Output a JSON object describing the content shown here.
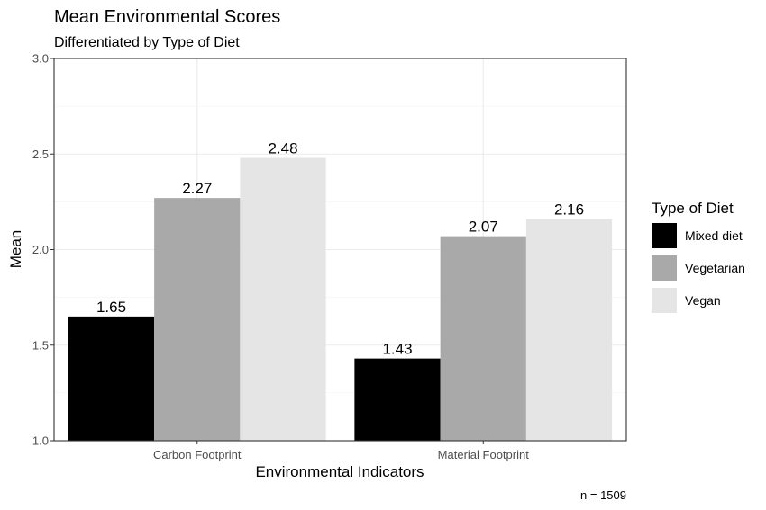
{
  "chart_data": {
    "type": "bar",
    "title": "Mean Environmental Scores",
    "subtitle": "Differentiated by Type of Diet",
    "xlabel": "Environmental Indicators",
    "ylabel": "Mean",
    "ylim": [
      1.0,
      3.0
    ],
    "yticks": [
      "1.0",
      "1.5",
      "2.0",
      "2.5",
      "3.0"
    ],
    "categories": [
      "Carbon Footprint",
      "Material Footprint"
    ],
    "series": [
      {
        "name": "Mixed diet",
        "values": [
          1.65,
          1.43
        ],
        "labels": [
          "1.65",
          "1.43"
        ],
        "color": "#000000"
      },
      {
        "name": "Vegetarian",
        "values": [
          2.27,
          2.07
        ],
        "labels": [
          "2.27",
          "2.07"
        ],
        "color": "#a9a9a9"
      },
      {
        "name": "Vegan",
        "values": [
          2.48,
          2.16
        ],
        "labels": [
          "2.48",
          "2.16"
        ],
        "color": "#e5e5e5"
      }
    ],
    "legend": {
      "title": "Type of Diet",
      "placement": "right"
    },
    "caption": "n = 1509",
    "grid": true
  }
}
